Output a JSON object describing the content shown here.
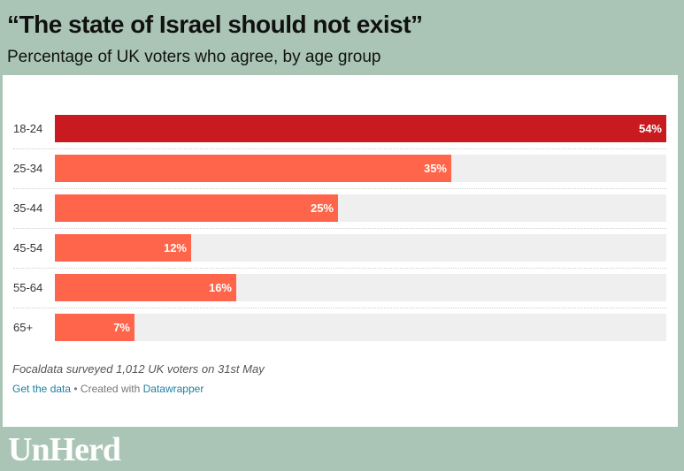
{
  "header": {
    "title": "“The state of Israel should not exist”",
    "subtitle": "Percentage of UK voters who agree, by age group"
  },
  "chart_data": {
    "type": "bar",
    "orientation": "horizontal",
    "categories": [
      "18-24",
      "25-34",
      "35-44",
      "45-54",
      "55-64",
      "65+"
    ],
    "values": [
      54,
      35,
      25,
      12,
      16,
      7
    ],
    "value_labels": [
      "54%",
      "35%",
      "25%",
      "12%",
      "16%",
      "7%"
    ],
    "xlim": [
      0,
      54
    ],
    "colors": {
      "highlight": "#c91a1f",
      "bar": "#ff654a",
      "track": "#efefef"
    }
  },
  "footer": {
    "source": "Focaldata surveyed 1,012 UK voters on 31st May",
    "get_data_link": "Get the data",
    "separator": " • Created with ",
    "datawrapper_link": "Datawrapper"
  },
  "brand": {
    "logo_text": "UnHerd"
  }
}
